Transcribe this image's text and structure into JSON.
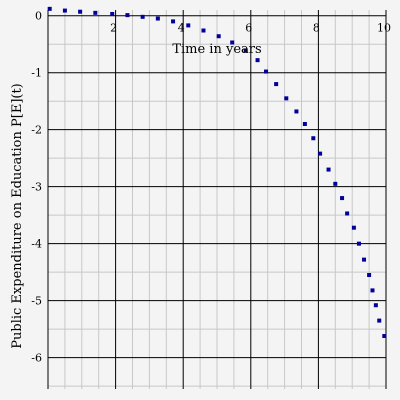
{
  "chart_data": {
    "type": "scatter",
    "xlabel": "Time in years",
    "ylabel": "Public Expenditure on Education P[E](t)",
    "xlim": [
      0,
      10
    ],
    "ylim": [
      -6.55,
      0.1
    ],
    "xticks": [
      2,
      4,
      6,
      8,
      10
    ],
    "yticks": [
      0,
      -1,
      -2,
      -3,
      -4,
      -5,
      -6
    ],
    "grid": true,
    "colors": {
      "series": "#00009a",
      "grid_major": "#000000",
      "grid_minor": "#c8c8c8",
      "background": "#f4f4f4"
    },
    "series": [
      {
        "marker": "point",
        "x": [
          0.05,
          0.5,
          0.95,
          1.4,
          1.9,
          2.35,
          2.8,
          3.25,
          3.7,
          4.15,
          4.6,
          5.05,
          5.45,
          5.85,
          6.2,
          6.45,
          6.75,
          7.05,
          7.35,
          7.6,
          7.85,
          8.05,
          8.3,
          8.5,
          8.7,
          8.85,
          9.05,
          9.2,
          9.35,
          9.5,
          9.6,
          9.7,
          9.8,
          9.95
        ],
        "y": [
          0.12,
          0.09,
          0.07,
          0.05,
          0.03,
          0.01,
          -0.02,
          -0.05,
          -0.1,
          -0.17,
          -0.26,
          -0.36,
          -0.47,
          -0.61,
          -0.78,
          -0.98,
          -1.2,
          -1.45,
          -1.68,
          -1.9,
          -2.15,
          -2.42,
          -2.7,
          -2.95,
          -3.2,
          -3.47,
          -3.72,
          -4.0,
          -4.28,
          -4.55,
          -4.82,
          -5.08,
          -5.35,
          -5.62
        ]
      }
    ]
  }
}
